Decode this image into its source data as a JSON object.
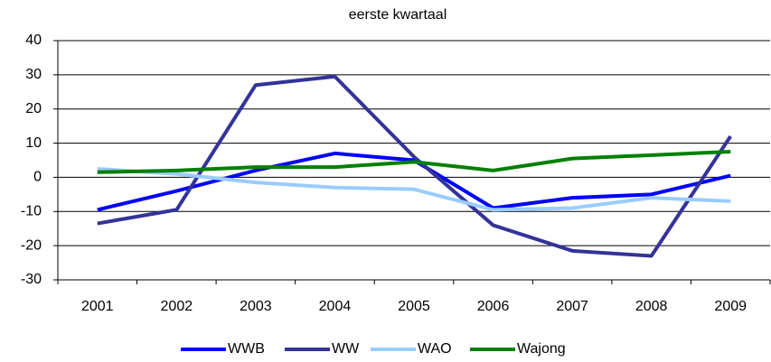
{
  "chart_data": {
    "type": "line",
    "title": "eerste kwartaal",
    "categories": [
      "2001",
      "2002",
      "2003",
      "2004",
      "2005",
      "2006",
      "2007",
      "2008",
      "2009"
    ],
    "series": [
      {
        "name": "WWB",
        "color": "#0000ff",
        "values": [
          -9.5,
          -4,
          2,
          7,
          5,
          -9,
          -6,
          -5,
          0.5
        ]
      },
      {
        "name": "WW",
        "color": "#333399",
        "values": [
          -13.5,
          -9.5,
          27,
          29.5,
          6,
          -14,
          -21.5,
          -23,
          12
        ]
      },
      {
        "name": "WAO",
        "color": "#99ccff",
        "values": [
          2.5,
          1,
          -1.5,
          -3,
          -3.5,
          -9.5,
          -9,
          -6,
          -7
        ]
      },
      {
        "name": "Wajong",
        "color": "#008000",
        "values": [
          1.5,
          2,
          3,
          3,
          4.5,
          2,
          5.5,
          6.5,
          7.5
        ]
      }
    ],
    "ylim": [
      -30,
      40
    ],
    "yticks": [
      -30,
      -20,
      -10,
      0,
      10,
      20,
      30,
      40
    ],
    "grid": true,
    "legend": "bottom"
  }
}
